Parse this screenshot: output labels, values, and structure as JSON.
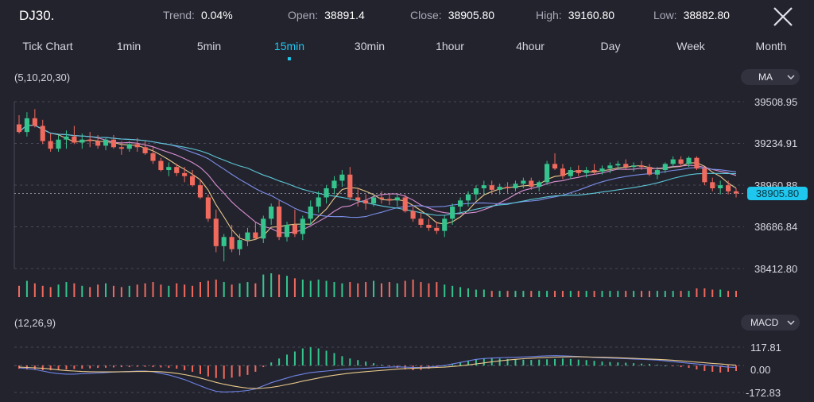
{
  "header": {
    "symbol": "DJ30.",
    "trend_label": "Trend:",
    "trend_value": "0.04%",
    "open_label": "Open:",
    "open_value": "38891.4",
    "close_label": "Close:",
    "close_value": "38905.80",
    "high_label": "High:",
    "high_value": "39160.80",
    "low_label": "Low:",
    "low_value": "38882.80",
    "close_icon": "close-x-icon"
  },
  "tabs": [
    {
      "label": "Tick Chart"
    },
    {
      "label": "1min"
    },
    {
      "label": "5min"
    },
    {
      "label": "15min",
      "active": true
    },
    {
      "label": "30min"
    },
    {
      "label": "1hour"
    },
    {
      "label": "4hour"
    },
    {
      "label": "Day"
    },
    {
      "label": "Week"
    },
    {
      "label": "Month"
    }
  ],
  "main_chart": {
    "params": "(5,10,20,30)",
    "indicator": "MA",
    "price_levels": [
      "39508.95",
      "39234.91",
      "38960.88",
      "38686.84",
      "38412.80"
    ],
    "last_price": "38905.80"
  },
  "macd": {
    "params": "(12,26,9)",
    "indicator": "MACD",
    "levels": [
      "117.81",
      "0.00",
      "-172.83"
    ]
  },
  "colors": {
    "background": "#23232e",
    "accent": "#1fc7ee",
    "up": "#35c48d",
    "down": "#f06a5e",
    "ma5": "#e8c98a",
    "ma10": "#d88fd0",
    "ma20": "#7b8fe8",
    "ma30": "#5cc6d6"
  },
  "chart_data": {
    "type": "candlestick",
    "candles": [
      [
        39360,
        39420,
        39300,
        39310
      ],
      [
        39310,
        39440,
        39280,
        39400
      ],
      [
        39400,
        39460,
        39340,
        39350
      ],
      [
        39350,
        39390,
        39230,
        39250
      ],
      [
        39250,
        39300,
        39180,
        39200
      ],
      [
        39200,
        39290,
        39180,
        39260
      ],
      [
        39260,
        39320,
        39200,
        39280
      ],
      [
        39280,
        39350,
        39230,
        39240
      ],
      [
        39240,
        39300,
        39200,
        39260
      ],
      [
        39260,
        39310,
        39210,
        39250
      ],
      [
        39250,
        39290,
        39200,
        39220
      ],
      [
        39220,
        39270,
        39190,
        39260
      ],
      [
        39260,
        39290,
        39200,
        39210
      ],
      [
        39210,
        39250,
        39160,
        39200
      ],
      [
        39200,
        39250,
        39180,
        39230
      ],
      [
        39230,
        39270,
        39180,
        39210
      ],
      [
        39210,
        39250,
        39160,
        39170
      ],
      [
        39170,
        39210,
        39100,
        39120
      ],
      [
        39120,
        39140,
        39050,
        39060
      ],
      [
        39060,
        39110,
        39020,
        39080
      ],
      [
        39080,
        39100,
        39020,
        39040
      ],
      [
        39040,
        39080,
        38980,
        39020
      ],
      [
        39020,
        39060,
        38950,
        38960
      ],
      [
        38960,
        39000,
        38870,
        38880
      ],
      [
        38880,
        38900,
        38720,
        38740
      ],
      [
        38740,
        38800,
        38520,
        38560
      ],
      [
        38560,
        38640,
        38460,
        38620
      ],
      [
        38620,
        38700,
        38520,
        38540
      ],
      [
        38540,
        38640,
        38500,
        38600
      ],
      [
        38600,
        38680,
        38560,
        38650
      ],
      [
        38650,
        38720,
        38600,
        38610
      ],
      [
        38610,
        38760,
        38580,
        38740
      ],
      [
        38740,
        38840,
        38700,
        38820
      ],
      [
        38820,
        38860,
        38600,
        38620
      ],
      [
        38620,
        38720,
        38590,
        38700
      ],
      [
        38700,
        38800,
        38620,
        38640
      ],
      [
        38640,
        38760,
        38600,
        38740
      ],
      [
        38740,
        38860,
        38700,
        38820
      ],
      [
        38820,
        38920,
        38780,
        38880
      ],
      [
        38880,
        38960,
        38840,
        38940
      ],
      [
        38940,
        39020,
        38900,
        38990
      ],
      [
        38990,
        39060,
        38950,
        39030
      ],
      [
        39030,
        39080,
        38860,
        38880
      ],
      [
        38880,
        38940,
        38820,
        38860
      ],
      [
        38860,
        38900,
        38800,
        38840
      ],
      [
        38840,
        38900,
        38820,
        38880
      ],
      [
        38880,
        38920,
        38840,
        38870
      ],
      [
        38870,
        38900,
        38830,
        38860
      ],
      [
        38860,
        38900,
        38820,
        38880
      ],
      [
        38880,
        38900,
        38780,
        38790
      ],
      [
        38790,
        38820,
        38720,
        38740
      ],
      [
        38740,
        38780,
        38680,
        38700
      ],
      [
        38700,
        38740,
        38660,
        38680
      ],
      [
        38680,
        38720,
        38640,
        38660
      ],
      [
        38660,
        38760,
        38620,
        38740
      ],
      [
        38740,
        38840,
        38700,
        38820
      ],
      [
        38820,
        38880,
        38780,
        38860
      ],
      [
        38860,
        38920,
        38820,
        38900
      ],
      [
        38900,
        38960,
        38860,
        38940
      ],
      [
        38940,
        38990,
        38900,
        38960
      ],
      [
        38960,
        38990,
        38900,
        38930
      ],
      [
        38930,
        38970,
        38900,
        38950
      ],
      [
        38950,
        38980,
        38910,
        38940
      ],
      [
        38940,
        38990,
        38920,
        38970
      ],
      [
        38970,
        39010,
        38940,
        38990
      ],
      [
        38990,
        39010,
        38930,
        38950
      ],
      [
        38950,
        38990,
        38920,
        38980
      ],
      [
        38980,
        39120,
        38960,
        39100
      ],
      [
        39100,
        39170,
        39060,
        39070
      ],
      [
        39070,
        39100,
        39000,
        39020
      ],
      [
        39020,
        39080,
        39000,
        39060
      ],
      [
        39060,
        39090,
        39020,
        39040
      ],
      [
        39040,
        39080,
        39010,
        39060
      ],
      [
        39060,
        39100,
        39030,
        39050
      ],
      [
        39050,
        39090,
        39030,
        39070
      ],
      [
        39070,
        39110,
        39040,
        39090
      ],
      [
        39090,
        39120,
        39060,
        39100
      ],
      [
        39100,
        39130,
        39060,
        39080
      ],
      [
        39080,
        39110,
        39050,
        39090
      ],
      [
        39090,
        39120,
        39060,
        39080
      ],
      [
        39080,
        39100,
        39020,
        39030
      ],
      [
        39030,
        39080,
        39000,
        39060
      ],
      [
        39060,
        39110,
        39040,
        39100
      ],
      [
        39100,
        39150,
        39080,
        39130
      ],
      [
        39130,
        39150,
        39080,
        39100
      ],
      [
        39100,
        39150,
        39080,
        39140
      ],
      [
        39140,
        39150,
        39060,
        39070
      ],
      [
        39070,
        39080,
        38960,
        38980
      ],
      [
        38980,
        39010,
        38920,
        38940
      ],
      [
        38940,
        38990,
        38900,
        38960
      ],
      [
        38960,
        38990,
        38900,
        38920
      ],
      [
        38920,
        38940,
        38880,
        38906
      ]
    ],
    "y_ticks": [
      39508.95,
      39234.91,
      38960.88,
      38686.84,
      38412.8
    ],
    "ylim": [
      38412.8,
      39508.95
    ],
    "volume": [
      18,
      26,
      22,
      18,
      16,
      20,
      24,
      22,
      18,
      16,
      20,
      22,
      18,
      16,
      18,
      20,
      22,
      24,
      20,
      18,
      22,
      20,
      18,
      24,
      26,
      28,
      24,
      20,
      22,
      24,
      22,
      36,
      38,
      36,
      34,
      30,
      28,
      26,
      28,
      26,
      24,
      22,
      24,
      22,
      24,
      26,
      22,
      24,
      22,
      26,
      28,
      24,
      22,
      24,
      20,
      18,
      16,
      14,
      12,
      12,
      10,
      10,
      10,
      10,
      10,
      10,
      10,
      10,
      10,
      10,
      10,
      10,
      10,
      10,
      10,
      10,
      10,
      10,
      10,
      10,
      10,
      10,
      10,
      10,
      10,
      10,
      14,
      14,
      12,
      12,
      10,
      10
    ],
    "macd": {
      "ylim": [
        -172.83,
        117.81
      ],
      "histogram": [
        -20,
        -25,
        -28,
        -30,
        -30,
        -28,
        -25,
        -22,
        -20,
        -18,
        -15,
        -14,
        -12,
        -10,
        -10,
        -8,
        -8,
        -10,
        -12,
        -15,
        -20,
        -30,
        -40,
        -55,
        -70,
        -80,
        -85,
        -78,
        -70,
        -60,
        -40,
        -10,
        20,
        45,
        70,
        90,
        110,
        117,
        110,
        95,
        80,
        60,
        45,
        35,
        25,
        15,
        5,
        -5,
        -15,
        -25,
        -30,
        -28,
        -20,
        -10,
        0,
        10,
        20,
        30,
        40,
        45,
        48,
        45,
        42,
        40,
        38,
        36,
        38,
        40,
        42,
        45,
        42,
        38,
        35,
        30,
        25,
        22,
        20,
        18,
        15,
        12,
        10,
        5,
        0,
        -5,
        -10,
        -15,
        -25,
        -35,
        -40,
        -45,
        -40,
        -35
      ],
      "dif": [
        -15,
        -20,
        -25,
        -35,
        -45,
        -52,
        -55,
        -55,
        -52,
        -50,
        -48,
        -45,
        -42,
        -40,
        -38,
        -35,
        -35,
        -40,
        -50,
        -60,
        -75,
        -90,
        -110,
        -130,
        -150,
        -165,
        -170,
        -168,
        -165,
        -160,
        -150,
        -130,
        -110,
        -95,
        -80,
        -65,
        -55,
        -45,
        -40,
        -35,
        -30,
        -25,
        -22,
        -20,
        -18,
        -15,
        -12,
        -10,
        -8,
        -10,
        -12,
        -12,
        -10,
        -5,
        0,
        10,
        20,
        30,
        40,
        45,
        48,
        50,
        52,
        53,
        55,
        57,
        60,
        62,
        63,
        62,
        60,
        58,
        55,
        52,
        50,
        48,
        46,
        44,
        42,
        40,
        38,
        35,
        30,
        25,
        20,
        15,
        10,
        5,
        0,
        -5,
        -10,
        -12
      ],
      "dea": [
        -10,
        -12,
        -15,
        -18,
        -22,
        -28,
        -32,
        -35,
        -38,
        -40,
        -41,
        -41,
        -41,
        -40,
        -39,
        -38,
        -37,
        -38,
        -40,
        -44,
        -50,
        -58,
        -68,
        -80,
        -94,
        -108,
        -120,
        -130,
        -138,
        -145,
        -148,
        -145,
        -140,
        -132,
        -122,
        -112,
        -100,
        -90,
        -80,
        -70,
        -62,
        -55,
        -49,
        -44,
        -39,
        -35,
        -31,
        -27,
        -23,
        -20,
        -18,
        -16,
        -14,
        -12,
        -10,
        -6,
        -2,
        4,
        10,
        17,
        24,
        30,
        35,
        40,
        44,
        47,
        50,
        52,
        54,
        55,
        56,
        56,
        55,
        54,
        53,
        52,
        50,
        48,
        46,
        44,
        42,
        40,
        37,
        34,
        30,
        26,
        22,
        18,
        14,
        10,
        6,
        2
      ]
    }
  }
}
